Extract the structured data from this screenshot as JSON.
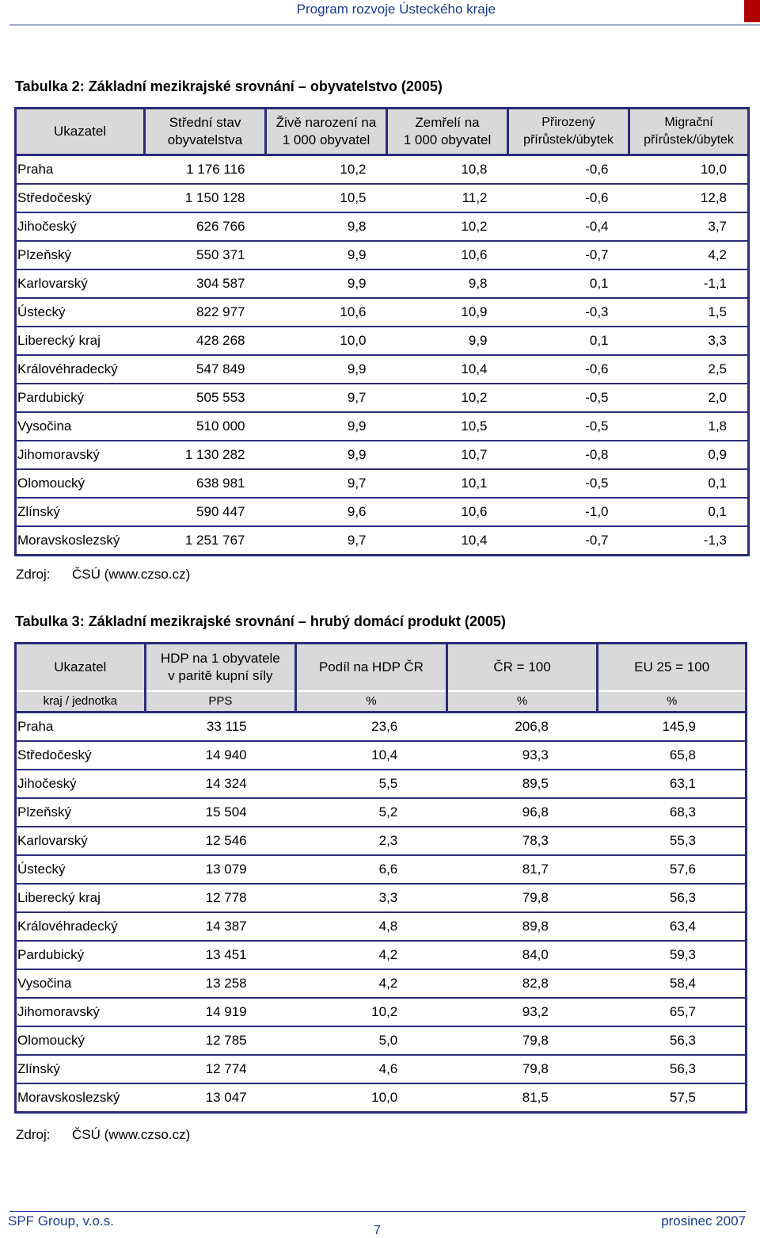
{
  "header": {
    "title": "Program rozvoje Ústeckého kraje"
  },
  "table1": {
    "caption": "Tabulka 2: Základní mezikrajské srovnání – obyvatelstvo (2005)",
    "headers": [
      [
        "Ukazatel"
      ],
      [
        "Střední stav",
        "obyvatelstva"
      ],
      [
        "Živě narození na",
        "1 000 obyvatel"
      ],
      [
        "Zemřelí na",
        "1 000 obyvatel"
      ],
      [
        "Přirozený",
        "přírůstek/úbytek"
      ],
      [
        "Migrační",
        "přírůstek/úbytek"
      ]
    ],
    "rows": [
      [
        "Praha",
        "1 176 116",
        "10,2",
        "10,8",
        "-0,6",
        "10,0"
      ],
      [
        "Středočeský",
        "1 150 128",
        "10,5",
        "11,2",
        "-0,6",
        "12,8"
      ],
      [
        "Jihočeský",
        "626 766",
        "9,8",
        "10,2",
        "-0,4",
        "3,7"
      ],
      [
        "Plzeňský",
        "550 371",
        "9,9",
        "10,6",
        "-0,7",
        "4,2"
      ],
      [
        "Karlovarský",
        "304 587",
        "9,9",
        "9,8",
        "0,1",
        "-1,1"
      ],
      [
        "Ústecký",
        "822 977",
        "10,6",
        "10,9",
        "-0,3",
        "1,5"
      ],
      [
        "Liberecký kraj",
        "428 268",
        "10,0",
        "9,9",
        "0,1",
        "3,3"
      ],
      [
        "Královéhradecký",
        "547 849",
        "9,9",
        "10,4",
        "-0,6",
        "2,5"
      ],
      [
        "Pardubický",
        "505 553",
        "9,7",
        "10,2",
        "-0,5",
        "2,0"
      ],
      [
        "Vysočina",
        "510 000",
        "9,9",
        "10,5",
        "-0,5",
        "1,8"
      ],
      [
        "Jihomoravský",
        "1 130 282",
        "9,9",
        "10,7",
        "-0,8",
        "0,9"
      ],
      [
        "Olomoucký",
        "638 981",
        "9,7",
        "10,1",
        "-0,5",
        "0,1"
      ],
      [
        "Zlínský",
        "590 447",
        "9,6",
        "10,6",
        "-1,0",
        "0,1"
      ],
      [
        "Moravskoslezský",
        "1 251 767",
        "9,7",
        "10,4",
        "-0,7",
        "-1,3"
      ]
    ],
    "source_label": "Zdroj:",
    "source_text": "ČSÚ (www.czso.cz)"
  },
  "table2": {
    "caption": "Tabulka 3: Základní mezikrajské srovnání – hrubý domácí produkt (2005)",
    "headers": [
      [
        "Ukazatel"
      ],
      [
        "HDP na 1 obyvatele",
        "v paritě kupní síly"
      ],
      [
        "Podíl na HDP ČR"
      ],
      [
        "ČR = 100"
      ],
      [
        "EU 25 = 100"
      ]
    ],
    "units": [
      "kraj / jednotka",
      "PPS",
      "%",
      "%",
      "%"
    ],
    "rows": [
      [
        "Praha",
        "33 115",
        "23,6",
        "206,8",
        "145,9"
      ],
      [
        "Středočeský",
        "14 940",
        "10,4",
        "93,3",
        "65,8"
      ],
      [
        "Jihočeský",
        "14 324",
        "5,5",
        "89,5",
        "63,1"
      ],
      [
        "Plzeňský",
        "15 504",
        "5,2",
        "96,8",
        "68,3"
      ],
      [
        "Karlovarský",
        "12 546",
        "2,3",
        "78,3",
        "55,3"
      ],
      [
        "Ústecký",
        "13 079",
        "6,6",
        "81,7",
        "57,6"
      ],
      [
        "Liberecký kraj",
        "12 778",
        "3,3",
        "79,8",
        "56,3"
      ],
      [
        "Královéhradecký",
        "14 387",
        "4,8",
        "89,8",
        "63,4"
      ],
      [
        "Pardubický",
        "13 451",
        "4,2",
        "84,0",
        "59,3"
      ],
      [
        "Vysočina",
        "13 258",
        "4,2",
        "82,8",
        "58,4"
      ],
      [
        "Jihomoravský",
        "14 919",
        "10,2",
        "93,2",
        "65,7"
      ],
      [
        "Olomoucký",
        "12 785",
        "5,0",
        "79,8",
        "56,3"
      ],
      [
        "Zlínský",
        "12 774",
        "4,6",
        "79,8",
        "56,3"
      ],
      [
        "Moravskoslezský",
        "13 047",
        "10,0",
        "81,5",
        "57,5"
      ]
    ],
    "source_label": "Zdroj:",
    "source_text": "ČSÚ (www.czso.cz)"
  },
  "footer": {
    "company": "SPF Group, v.o.s.",
    "page": "7",
    "date": "prosinec 2007"
  },
  "colors": {
    "header_text": "#1a3a8c",
    "accent_bar": "#b00000",
    "table_border": "#2c2c7a",
    "header_fill": "#d9d9d9"
  }
}
